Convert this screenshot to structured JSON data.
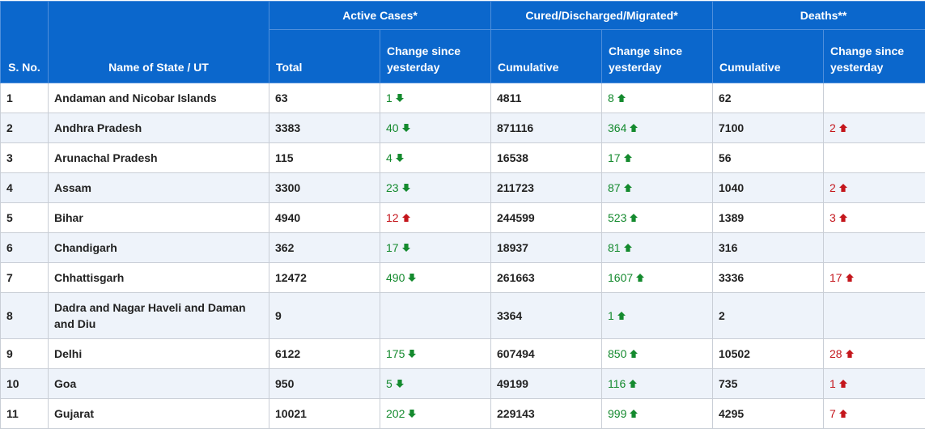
{
  "headers": {
    "sno": "S. No.",
    "name": "Name of State / UT",
    "active_group": "Active Cases*",
    "cured_group": "Cured/Discharged/Migrated*",
    "deaths_group": "Deaths**",
    "total": "Total",
    "change1": "Change since yesterday",
    "cumulative1": "Cumulative",
    "change2": "Change since yesterday",
    "cumulative2": "Cumulative",
    "change3": "Change since yesterday"
  },
  "colors": {
    "header_bg": "#0b67cc",
    "down_green": "#148a2e",
    "up_red": "#c4161c",
    "up_green": "#148a2e"
  },
  "rows": [
    {
      "sno": "1",
      "name": "Andaman and Nicobar Islands",
      "active": "63",
      "active_change": "1",
      "active_dir": "down",
      "cured": "4811",
      "cured_change": "8",
      "deaths": "62",
      "deaths_change": ""
    },
    {
      "sno": "2",
      "name": "Andhra Pradesh",
      "active": "3383",
      "active_change": "40",
      "active_dir": "down",
      "cured": "871116",
      "cured_change": "364",
      "deaths": "7100",
      "deaths_change": "2"
    },
    {
      "sno": "3",
      "name": "Arunachal Pradesh",
      "active": "115",
      "active_change": "4",
      "active_dir": "down",
      "cured": "16538",
      "cured_change": "17",
      "deaths": "56",
      "deaths_change": ""
    },
    {
      "sno": "4",
      "name": "Assam",
      "active": "3300",
      "active_change": "23",
      "active_dir": "down",
      "cured": "211723",
      "cured_change": "87",
      "deaths": "1040",
      "deaths_change": "2"
    },
    {
      "sno": "5",
      "name": "Bihar",
      "active": "4940",
      "active_change": "12",
      "active_dir": "up",
      "cured": "244599",
      "cured_change": "523",
      "deaths": "1389",
      "deaths_change": "3"
    },
    {
      "sno": "6",
      "name": "Chandigarh",
      "active": "362",
      "active_change": "17",
      "active_dir": "down",
      "cured": "18937",
      "cured_change": "81",
      "deaths": "316",
      "deaths_change": ""
    },
    {
      "sno": "7",
      "name": "Chhattisgarh",
      "active": "12472",
      "active_change": "490",
      "active_dir": "down",
      "cured": "261663",
      "cured_change": "1607",
      "deaths": "3336",
      "deaths_change": "17"
    },
    {
      "sno": "8",
      "name": "Dadra and Nagar Haveli and Daman and Diu",
      "active": "9",
      "active_change": "",
      "active_dir": "",
      "cured": "3364",
      "cured_change": "1",
      "deaths": "2",
      "deaths_change": ""
    },
    {
      "sno": "9",
      "name": "Delhi",
      "active": "6122",
      "active_change": "175",
      "active_dir": "down",
      "cured": "607494",
      "cured_change": "850",
      "deaths": "10502",
      "deaths_change": "28"
    },
    {
      "sno": "10",
      "name": "Goa",
      "active": "950",
      "active_change": "5",
      "active_dir": "down",
      "cured": "49199",
      "cured_change": "116",
      "deaths": "735",
      "deaths_change": "1"
    },
    {
      "sno": "11",
      "name": "Gujarat",
      "active": "10021",
      "active_change": "202",
      "active_dir": "down",
      "cured": "229143",
      "cured_change": "999",
      "deaths": "4295",
      "deaths_change": "7"
    }
  ]
}
